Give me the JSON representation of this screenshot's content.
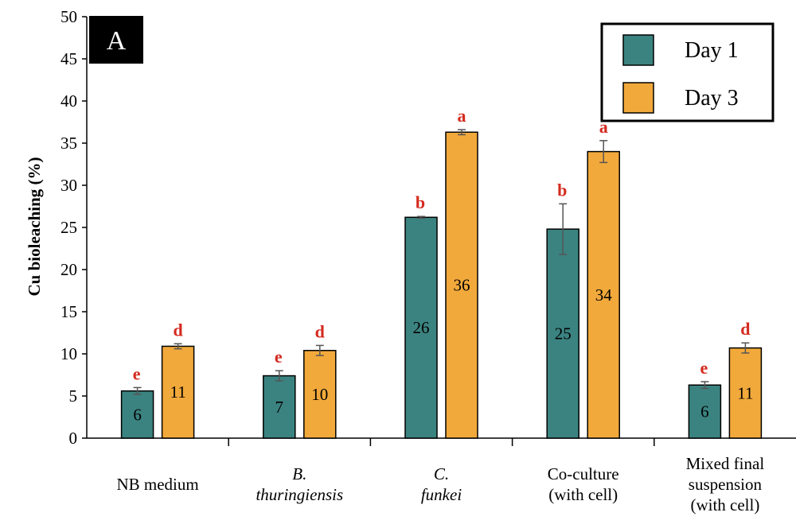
{
  "panel_label": "A",
  "colors": {
    "day1": "#3b8380",
    "day3": "#f2a93b",
    "sig": "#d42a1f",
    "error": "#555555"
  },
  "chart_data": {
    "type": "bar",
    "title": "",
    "xlabel": "",
    "ylabel": "Cu bioleaching (%)",
    "ylim": [
      0,
      50
    ],
    "yticks": [
      0,
      5,
      10,
      15,
      20,
      25,
      30,
      35,
      40,
      45,
      50
    ],
    "legend_position": "top-right",
    "categories": [
      {
        "lines": [
          {
            "text": "NB medium",
            "italic": false
          }
        ]
      },
      {
        "lines": [
          {
            "text": "B.",
            "italic": true
          },
          {
            "text": "thuringiensis",
            "italic": true
          }
        ]
      },
      {
        "lines": [
          {
            "text": "C.",
            "italic": true
          },
          {
            "text": "funkei",
            "italic": true
          }
        ]
      },
      {
        "lines": [
          {
            "text": "Co-culture",
            "italic": false
          },
          {
            "text": "(with cell)",
            "italic": false
          }
        ]
      },
      {
        "lines": [
          {
            "text": "Mixed final",
            "italic": false
          },
          {
            "text": "suspension",
            "italic": false
          },
          {
            "text": "(with cell)",
            "italic": false
          }
        ]
      }
    ],
    "series": [
      {
        "name": "Day 1",
        "values": [
          5.6,
          7.4,
          26.2,
          24.8,
          6.3
        ],
        "errors": [
          0.4,
          0.6,
          0.1,
          3.0,
          0.4
        ],
        "labels": [
          "6",
          "7",
          "26",
          "25",
          "6"
        ],
        "letters": [
          "e",
          "e",
          "b",
          "b",
          "e"
        ]
      },
      {
        "name": "Day 3",
        "values": [
          10.9,
          10.4,
          36.3,
          34.0,
          10.7
        ],
        "errors": [
          0.3,
          0.6,
          0.3,
          1.3,
          0.6
        ],
        "labels": [
          "11",
          "10",
          "36",
          "34",
          "11"
        ],
        "letters": [
          "d",
          "d",
          "a",
          "a",
          "d"
        ]
      }
    ]
  }
}
